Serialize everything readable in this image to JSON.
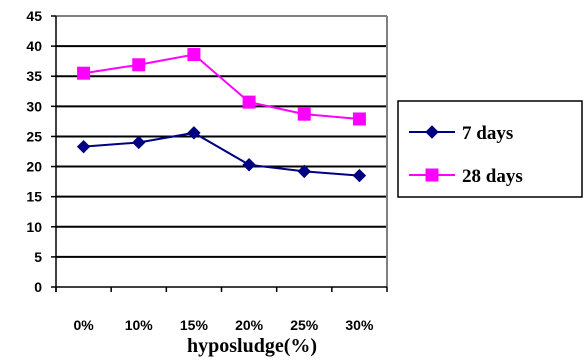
{
  "chart_data": {
    "type": "line",
    "categories": [
      "0%",
      "10%",
      "15%",
      "20%",
      "25%",
      "30%"
    ],
    "xlabel": "hyposludge(%)",
    "ylabel": "",
    "ylim": [
      0,
      45
    ],
    "yticks": [
      0,
      5,
      10,
      15,
      20,
      25,
      30,
      35,
      40,
      45
    ],
    "grid": true,
    "legend_position": "right",
    "series": [
      {
        "name": "7 days",
        "values": [
          23.3,
          24.0,
          25.6,
          20.3,
          19.2,
          18.5
        ],
        "color": "#000080",
        "marker": "diamond"
      },
      {
        "name": "28 days",
        "values": [
          35.5,
          36.9,
          38.6,
          30.7,
          28.7,
          27.9
        ],
        "color": "#FF00FF",
        "marker": "square"
      }
    ]
  }
}
